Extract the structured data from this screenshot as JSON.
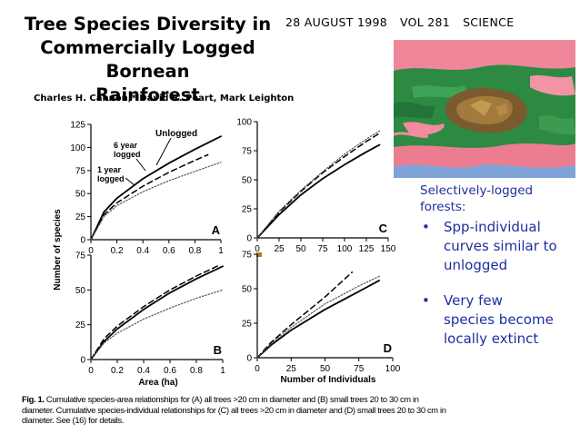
{
  "slide": {
    "title_line1": "Tree Species Diversity in",
    "title_line2": "Commercially Logged Bornean",
    "title_line3": "Rainforest",
    "date": "28 AUGUST 1998",
    "volume": "VOL 281",
    "journal": "SCIENCE",
    "authors": "Charles H. Cannon,* David R. Peart, Mark Leighton"
  },
  "notes": {
    "heading_line1": "Selectively-logged",
    "heading_line2": "forests:",
    "bullet_symbol": "•",
    "bullets": [
      {
        "line1": "Spp-individual",
        "line2": "curves similar to",
        "line3": "unlogged"
      },
      {
        "line1": "Very few",
        "line2": "species become",
        "line3": "locally extinct"
      }
    ],
    "text_color": "#1f2f9f"
  },
  "figure": {
    "ylabel": "Number of species",
    "xlabel_area": "Area (ha)",
    "xlabel_individuals": "Number of Individuals",
    "label_unlogged": "Unlogged",
    "label_6yr_1": "6 year",
    "label_6yr_2": "logged",
    "label_1yr_1": "1 year",
    "label_1yr_2": "logged"
  },
  "caption": {
    "fig_label": "Fig. 1.",
    "text": " Cumulative species-area relationships for (A) all trees >20 cm in diameter and (B) small trees 20 to 30 cm in diameter. Cumulative species-individual relationships for (C) all trees >20 cm in diameter and (D) small trees 20 to 30 cm in diameter. See (16) for details."
  },
  "chart_data": [
    {
      "panel": "A",
      "type": "line",
      "xlabel": "",
      "ylabel": "Number of species",
      "xlim": [
        0,
        1
      ],
      "ylim": [
        0,
        125
      ],
      "xticks": [
        "0",
        "0.2",
        "0.4",
        "0.6",
        "0.8",
        "1"
      ],
      "yticks": [
        "0",
        "25",
        "50",
        "75",
        "100",
        "125"
      ],
      "series": [
        {
          "name": "Unlogged",
          "style": "solid",
          "x": [
            0,
            0.1,
            0.2,
            0.4,
            0.6,
            0.8,
            1
          ],
          "y": [
            0,
            30,
            45,
            66,
            83,
            98,
            112
          ]
        },
        {
          "name": "6 year logged",
          "style": "dashed",
          "x": [
            0,
            0.1,
            0.2,
            0.4,
            0.6,
            0.8,
            0.9
          ],
          "y": [
            0,
            27,
            40,
            58,
            73,
            86,
            92
          ]
        },
        {
          "name": "1 year logged",
          "style": "dotted",
          "x": [
            0,
            0.1,
            0.2,
            0.4,
            0.6,
            0.8,
            1
          ],
          "y": [
            0,
            25,
            37,
            52,
            64,
            74,
            84
          ]
        }
      ]
    },
    {
      "panel": "C",
      "type": "line",
      "xlim": [
        0,
        150
      ],
      "ylim": [
        0,
        100
      ],
      "xticks": [
        "0",
        "25",
        "50",
        "75",
        "100",
        "125",
        "150"
      ],
      "yticks": [
        "0",
        "25",
        "50",
        "75",
        "100"
      ],
      "series": [
        {
          "style": "solid",
          "x": [
            0,
            25,
            50,
            75,
            100,
            125,
            140
          ],
          "y": [
            0,
            20,
            37,
            51,
            63,
            74,
            80
          ]
        },
        {
          "style": "dashed",
          "x": [
            0,
            25,
            50,
            75,
            100,
            125,
            140
          ],
          "y": [
            0,
            22,
            40,
            56,
            70,
            83,
            90
          ]
        },
        {
          "style": "dotted",
          "x": [
            0,
            25,
            50,
            75,
            100,
            125,
            140
          ],
          "y": [
            0,
            23,
            41,
            57,
            72,
            85,
            92
          ]
        }
      ]
    },
    {
      "panel": "B",
      "type": "line",
      "xlabel": "Area (ha)",
      "xlim": [
        0,
        1
      ],
      "ylim": [
        0,
        75
      ],
      "xticks": [
        "0",
        "0.2",
        "0.4",
        "0.6",
        "0.8",
        "1"
      ],
      "yticks": [
        "0",
        "25",
        "50",
        "75"
      ],
      "series": [
        {
          "style": "solid",
          "x": [
            0,
            0.1,
            0.2,
            0.4,
            0.6,
            0.8,
            1
          ],
          "y": [
            0,
            13,
            22,
            36,
            48,
            58,
            67
          ]
        },
        {
          "style": "dashed",
          "x": [
            0,
            0.1,
            0.2,
            0.4,
            0.6,
            0.8,
            0.98
          ],
          "y": [
            0,
            15,
            24,
            38,
            50,
            60,
            68
          ]
        },
        {
          "style": "dotted",
          "x": [
            0,
            0.1,
            0.2,
            0.4,
            0.6,
            0.8,
            1
          ],
          "y": [
            0,
            12,
            19,
            29,
            37,
            44,
            50
          ]
        }
      ]
    },
    {
      "panel": "D",
      "type": "line",
      "xlabel": "Number of Individuals",
      "xlim": [
        0,
        100
      ],
      "ylim": [
        0,
        75
      ],
      "xticks": [
        "0",
        "25",
        "50",
        "75",
        "100"
      ],
      "yticks": [
        "0",
        "25",
        "50",
        "75"
      ],
      "series": [
        {
          "style": "solid",
          "x": [
            0,
            10,
            25,
            50,
            75,
            90
          ],
          "y": [
            0,
            9,
            20,
            35,
            48,
            56
          ]
        },
        {
          "style": "dashed",
          "x": [
            0,
            10,
            25,
            50,
            70
          ],
          "y": [
            0,
            11,
            24,
            44,
            62
          ]
        },
        {
          "style": "dotted",
          "x": [
            0,
            10,
            25,
            50,
            75,
            90
          ],
          "y": [
            0,
            10,
            22,
            39,
            52,
            59
          ]
        }
      ]
    }
  ]
}
